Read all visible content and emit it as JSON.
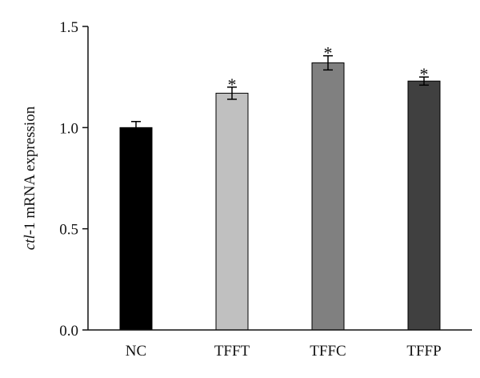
{
  "chart_data": {
    "type": "bar",
    "title": "",
    "xlabel": "",
    "ylabel": {
      "italic_part": "ctl",
      "rest": "-1 mRNA expression"
    },
    "categories": [
      "NC",
      "TFFT",
      "TFFC",
      "TFFP"
    ],
    "values": [
      1.0,
      1.17,
      1.32,
      1.23
    ],
    "errors": [
      0.03,
      0.03,
      0.035,
      0.02
    ],
    "significance": [
      "",
      "*",
      "*",
      "*"
    ],
    "bar_colors": [
      "#000000",
      "#c0c0c0",
      "#808080",
      "#404040"
    ],
    "ylim": [
      0,
      1.5
    ],
    "yticks": [
      0.0,
      0.5,
      1.0,
      1.5
    ],
    "ytick_labels": [
      "0.0",
      "0.5",
      "1.0",
      "1.5"
    ],
    "grid": false,
    "legend": "none"
  }
}
